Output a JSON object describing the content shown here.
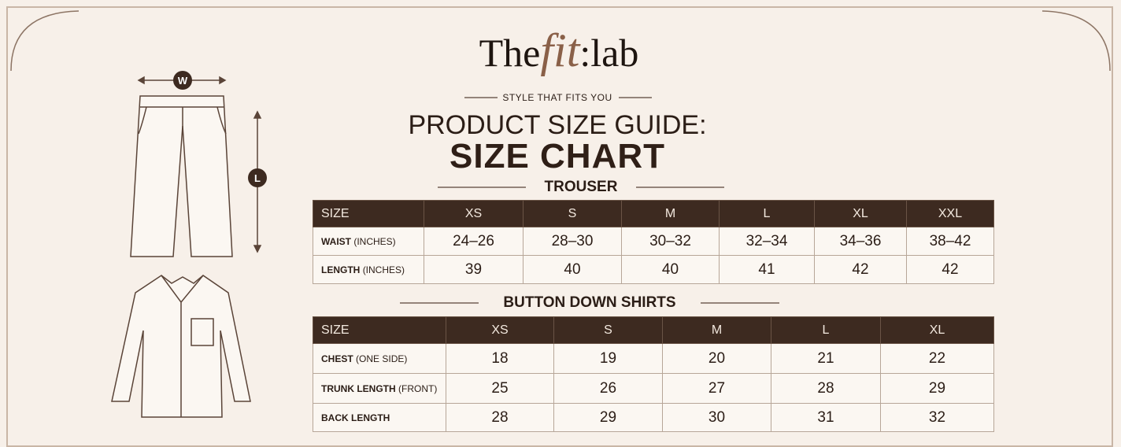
{
  "brand": {
    "the": "The",
    "fit": "fit",
    "lab": ":lab"
  },
  "tagline": "STYLE THAT FITS YOU",
  "heading": "PRODUCT SIZE GUIDE:",
  "subheading": "SIZE CHART",
  "illustration": {
    "width_label": "W",
    "length_label": "L"
  },
  "trouser": {
    "title": "TROUSER",
    "header": [
      "SIZE",
      "XS",
      "S",
      "M",
      "L",
      "XL",
      "XXL"
    ],
    "rows": [
      {
        "label": "WAIST",
        "unit": "(INCHES)",
        "cells": [
          "24–26",
          "28–30",
          "30–32",
          "32–34",
          "34–36",
          "38–42"
        ]
      },
      {
        "label": "LENGTH",
        "unit": "(INCHES)",
        "cells": [
          39,
          40,
          40,
          41,
          42,
          42
        ]
      }
    ]
  },
  "shirts": {
    "title": "BUTTON DOWN SHIRTS",
    "header": [
      "SIZE",
      "XS",
      "S",
      "M",
      "L",
      "XL"
    ],
    "rows": [
      {
        "label": "CHEST",
        "unit": "(ONE SIDE)",
        "cells": [
          18,
          19,
          20,
          21,
          22
        ]
      },
      {
        "label": "TRUNK LENGTH",
        "unit": "(FRONT)",
        "cells": [
          25,
          26,
          27,
          28,
          29
        ]
      },
      {
        "label": "BACK LENGTH",
        "cells": [
          28,
          29,
          30,
          31,
          32
        ]
      }
    ]
  }
}
